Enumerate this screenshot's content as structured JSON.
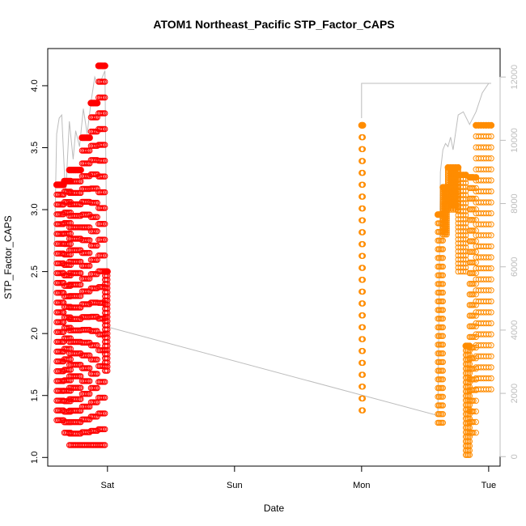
{
  "chart_data": {
    "type": "scatter",
    "title": "ATOM1 Northeast_Pacific STP_Factor_CAPS",
    "xlabel": "Date",
    "ylabel": "STP_Factor_CAPS",
    "x_axis": {
      "type": "time",
      "unit": "days",
      "ticks": [
        {
          "label": "Sat",
          "value": 0
        },
        {
          "label": "Sun",
          "value": 1
        },
        {
          "label": "Mon",
          "value": 2
        },
        {
          "label": "Tue",
          "value": 3
        }
      ],
      "range": [
        -0.47,
        3.09
      ]
    },
    "y_axis": {
      "ticks": [
        1.0,
        1.5,
        2.0,
        2.5,
        3.0,
        3.5,
        4.0
      ],
      "tick_labels": [
        "1.0",
        "1.5",
        "2.0",
        "2.5",
        "3.0",
        "3.5",
        "4.0"
      ],
      "range": [
        0.93,
        4.3
      ]
    },
    "y2_axis": {
      "ticks": [
        0,
        2000,
        4000,
        6000,
        8000,
        10000,
        12000
      ],
      "tick_labels": [
        "0",
        "2000",
        "4000",
        "6000",
        "8000",
        "10000",
        "12000"
      ],
      "range": [
        -300,
        12900
      ],
      "color": "#bdbdbd"
    },
    "grid": false,
    "legend": "none",
    "series": [
      {
        "color": "#ff0000",
        "marker": "open-circle",
        "segments": [
          {
            "x": [
              -0.4,
              -0.39,
              -0.38,
              -0.37,
              -0.36,
              -0.35,
              -0.345
            ],
            "y_min": 1.3,
            "y_max": 3.2
          },
          {
            "x": [
              -0.34,
              -0.33,
              -0.32,
              -0.31,
              -0.3,
              -0.29
            ],
            "y_min": 1.2,
            "y_max": 3.23
          },
          {
            "x": [
              -0.3,
              -0.29,
              -0.28,
              -0.27,
              -0.26,
              -0.25,
              -0.24,
              -0.23,
              -0.22,
              -0.21
            ],
            "y_min": 1.1,
            "y_max": 3.32
          },
          {
            "x": [
              -0.2,
              -0.19,
              -0.18,
              -0.17,
              -0.16,
              -0.15,
              -0.14
            ],
            "y_min": 1.1,
            "y_max": 3.58
          },
          {
            "x": [
              -0.13,
              -0.12,
              -0.11,
              -0.1,
              -0.09,
              -0.08
            ],
            "y_min": 1.1,
            "y_max": 3.86
          },
          {
            "x": [
              -0.07,
              -0.06,
              -0.05,
              -0.04,
              -0.03,
              -0.02
            ],
            "y_min": 1.1,
            "y_max": 4.16
          },
          {
            "x": [
              -0.02,
              -0.01,
              0.0
            ],
            "y_min": 1.7,
            "y_max": 2.5
          }
        ]
      },
      {
        "color": "#ff8c00",
        "marker": "open-circle",
        "segments": [
          {
            "x": [
              2.0,
              2.005,
              2.01
            ],
            "y_min": 1.38,
            "y_max": 3.68
          },
          {
            "x": [
              2.6,
              2.61,
              2.62,
              2.63,
              2.64
            ],
            "y_min": 1.28,
            "y_max": 2.96
          },
          {
            "x": [
              2.64,
              2.65,
              2.66,
              2.67
            ],
            "y_min": 2.8,
            "y_max": 3.18
          },
          {
            "x": [
              2.68,
              2.7,
              2.72,
              2.74,
              2.76
            ],
            "y_min": 3.0,
            "y_max": 3.34
          },
          {
            "x": [
              2.76,
              2.78,
              2.8,
              2.82
            ],
            "y_min": 2.5,
            "y_max": 3.28
          },
          {
            "x": [
              2.82,
              2.83,
              2.84,
              2.85
            ],
            "y_min": 1.02,
            "y_max": 1.9
          },
          {
            "x": [
              2.85,
              2.86,
              2.87,
              2.88,
              2.9
            ],
            "y_min": 1.2,
            "y_max": 3.26
          },
          {
            "x": [
              2.9,
              2.92,
              2.94,
              2.96,
              2.98,
              3.0,
              3.02
            ],
            "y_min": 1.55,
            "y_max": 3.68
          }
        ]
      }
    ],
    "secondary_line": {
      "color": "#bdbdbd",
      "points": [
        [
          -0.47,
          1800
        ],
        [
          -0.45,
          3000
        ],
        [
          -0.42,
          6000
        ],
        [
          -0.4,
          10200
        ],
        [
          -0.38,
          10700
        ],
        [
          -0.36,
          10800
        ],
        [
          -0.33,
          8200
        ],
        [
          -0.3,
          10600
        ],
        [
          -0.27,
          9400
        ],
        [
          -0.25,
          10300
        ],
        [
          -0.22,
          9800
        ],
        [
          -0.19,
          11000
        ],
        [
          -0.16,
          10200
        ],
        [
          -0.13,
          11200
        ],
        [
          -0.1,
          12000
        ],
        [
          -0.08,
          11800
        ],
        [
          -0.05,
          11900
        ],
        [
          -0.02,
          12200
        ],
        [
          0.0,
          4100
        ],
        [
          2.6,
          1300
        ],
        [
          2.62,
          9000
        ],
        [
          2.64,
          9700
        ],
        [
          2.66,
          9900
        ],
        [
          2.68,
          9800
        ],
        [
          2.7,
          10100
        ],
        [
          2.72,
          9700
        ],
        [
          2.76,
          10800
        ],
        [
          2.8,
          10900
        ],
        [
          2.85,
          10500
        ],
        [
          2.9,
          10900
        ],
        [
          2.95,
          11500
        ],
        [
          3.0,
          11800
        ],
        [
          3.02,
          11800
        ],
        [
          3.02,
          11800
        ],
        [
          2.0,
          11800
        ],
        [
          2.0,
          10700
        ]
      ]
    }
  }
}
